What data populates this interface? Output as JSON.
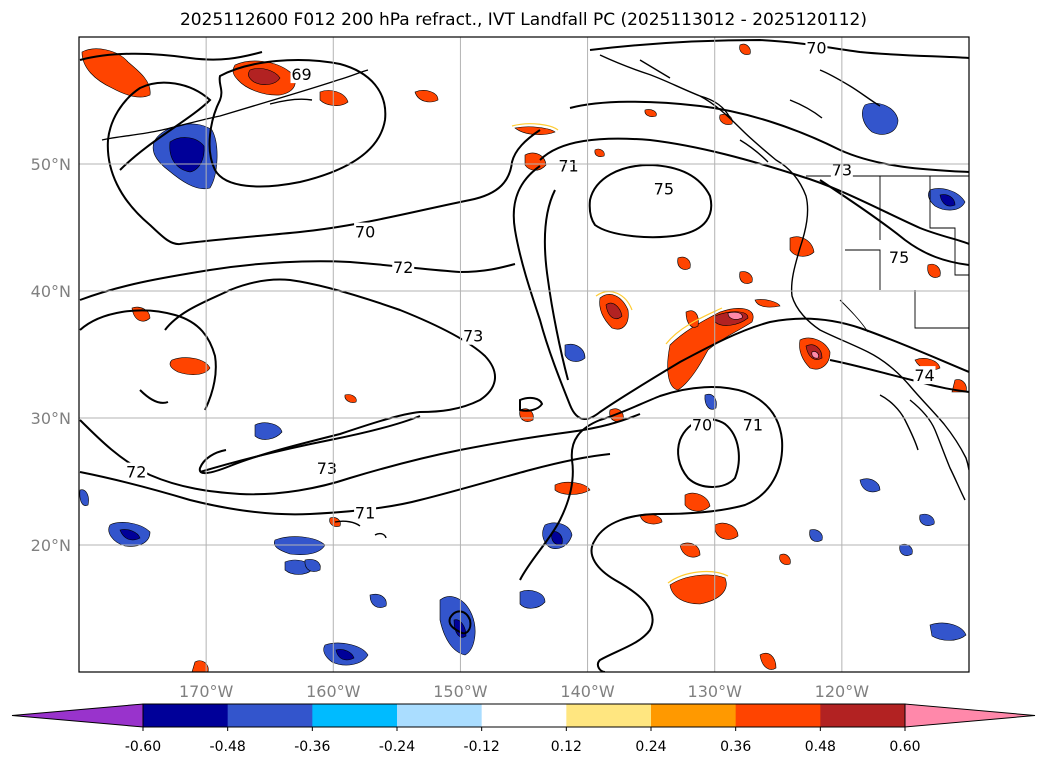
{
  "title": "2025112600 F012 200 hPa refract., IVT Landfall PC (2025113012 - 2025120112)",
  "map": {
    "lon_range": [
      180,
      110
    ],
    "lat_range": [
      10,
      60
    ],
    "lon_ticks": [
      "170°W",
      "160°W",
      "150°W",
      "140°W",
      "130°W",
      "120°W"
    ],
    "lat_ticks": [
      "50°N",
      "40°N",
      "30°N",
      "20°N"
    ],
    "grid": true,
    "contour_labels": [
      {
        "text": "69",
        "lon": -162.5,
        "lat": 57.0
      },
      {
        "text": "70",
        "lon": -122.0,
        "lat": 59.1
      },
      {
        "text": "71",
        "lon": -141.5,
        "lat": 49.8
      },
      {
        "text": "75",
        "lon": -134.0,
        "lat": 48.0
      },
      {
        "text": "73",
        "lon": -120.0,
        "lat": 49.5
      },
      {
        "text": "70",
        "lon": -157.5,
        "lat": 44.6
      },
      {
        "text": "72",
        "lon": -154.5,
        "lat": 41.8
      },
      {
        "text": "75",
        "lon": -115.5,
        "lat": 42.6
      },
      {
        "text": "73",
        "lon": -149.0,
        "lat": 36.4
      },
      {
        "text": "74",
        "lon": -113.5,
        "lat": 33.3
      },
      {
        "text": "70",
        "lon": -131.0,
        "lat": 29.4
      },
      {
        "text": "71",
        "lon": -127.0,
        "lat": 29.4
      },
      {
        "text": "72",
        "lon": -175.5,
        "lat": 25.7
      },
      {
        "text": "73",
        "lon": -160.5,
        "lat": 26.0
      },
      {
        "text": "71",
        "lon": -157.5,
        "lat": 22.5
      }
    ]
  },
  "colorbar": {
    "ticks": [
      "-0.60",
      "-0.48",
      "-0.36",
      "-0.24",
      "-0.12",
      "0.12",
      "0.24",
      "0.36",
      "0.48",
      "0.60"
    ],
    "colors": [
      "#9933cc",
      "#000099",
      "#3355cc",
      "#00bbff",
      "#aaddff",
      "#ffffff",
      "#ffe680",
      "#ff9900",
      "#ff4400",
      "#b22222",
      "#ff88aa"
    ]
  }
}
